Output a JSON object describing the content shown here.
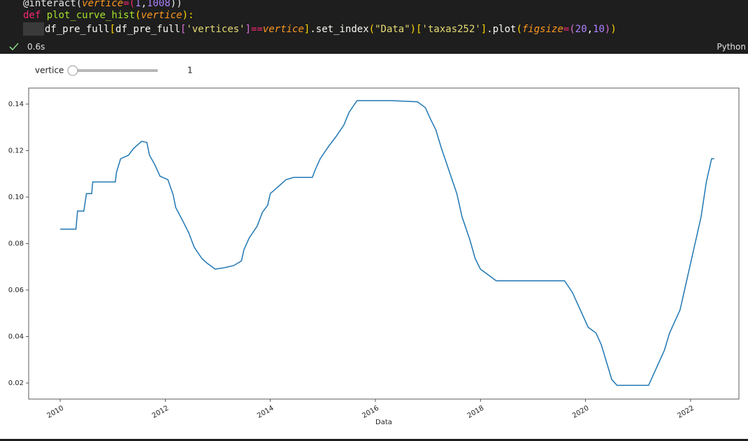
{
  "code": {
    "lines": [
      {
        "tokens": [
          {
            "text": "@interact(",
            "color": "#e8e8e8"
          },
          {
            "text": "vertice",
            "color": "#fd971f",
            "italic": true
          },
          {
            "text": "=(",
            "color": "#f92672"
          },
          {
            "text": "1",
            "color": "#ae81ff"
          },
          {
            "text": ",",
            "color": "#e8e8e8"
          },
          {
            "text": "1008",
            "color": "#ae81ff"
          },
          {
            "text": "))",
            "color": "#e8e8e8"
          }
        ]
      },
      {
        "tokens": [
          {
            "text": "def",
            "color": "#f92672"
          },
          {
            "text": " ",
            "color": "#e8e8e8"
          },
          {
            "text": "plot_curve_hist",
            "color": "#a6e22e"
          },
          {
            "text": "(",
            "color": "#ffd700"
          },
          {
            "text": "vertice",
            "color": "#fd971f",
            "italic": true
          },
          {
            "text": "):",
            "color": "#ffd700"
          }
        ]
      },
      {
        "tokens": [
          {
            "text": "df_pre_full",
            "color": "#f8f8f2"
          },
          {
            "text": "[",
            "color": "#ffd700"
          },
          {
            "text": "df_pre_full",
            "color": "#f8f8f2"
          },
          {
            "text": "[",
            "color": "#da70d6"
          },
          {
            "text": "'vertices'",
            "color": "#e6db74"
          },
          {
            "text": "]",
            "color": "#da70d6"
          },
          {
            "text": "==",
            "color": "#f92672"
          },
          {
            "text": "vertice",
            "color": "#fd971f",
            "italic": true
          },
          {
            "text": "]",
            "color": "#ffd700"
          },
          {
            "text": ".set_index",
            "color": "#f8f8f2"
          },
          {
            "text": "(",
            "color": "#ffd700"
          },
          {
            "text": "\"Data\"",
            "color": "#e6db74"
          },
          {
            "text": ")",
            "color": "#ffd700"
          },
          {
            "text": "[",
            "color": "#ffd700"
          },
          {
            "text": "'taxas252'",
            "color": "#e6db74"
          },
          {
            "text": "]",
            "color": "#ffd700"
          },
          {
            "text": ".plot",
            "color": "#f8f8f2"
          },
          {
            "text": "(",
            "color": "#ffd700"
          },
          {
            "text": "figsize",
            "color": "#fd971f",
            "italic": true
          },
          {
            "text": "=",
            "color": "#f92672"
          },
          {
            "text": "(",
            "color": "#da70d6"
          },
          {
            "text": "20",
            "color": "#ae81ff"
          },
          {
            "text": ",",
            "color": "#f8f8f2"
          },
          {
            "text": "10",
            "color": "#ae81ff"
          },
          {
            "text": ")",
            "color": "#da70d6"
          },
          {
            "text": ")",
            "color": "#ffd700"
          }
        ]
      }
    ]
  },
  "status": {
    "time": "0.6s",
    "language": "Python"
  },
  "widget": {
    "label": "vertice",
    "value": 1
  },
  "chart_data": {
    "type": "line",
    "xlabel": "Data",
    "x": [
      2010.0,
      2010.3,
      2010.33,
      2010.45,
      2010.5,
      2010.6,
      2010.62,
      2011.05,
      2011.07,
      2011.15,
      2011.3,
      2011.4,
      2011.55,
      2011.65,
      2011.7,
      2011.8,
      2011.9,
      2012.05,
      2012.15,
      2012.2,
      2012.35,
      2012.45,
      2012.55,
      2012.7,
      2012.8,
      2012.95,
      2013.1,
      2013.3,
      2013.45,
      2013.5,
      2013.6,
      2013.75,
      2013.85,
      2013.95,
      2014.0,
      2014.15,
      2014.3,
      2014.45,
      2014.8,
      2014.85,
      2014.95,
      2015.1,
      2015.25,
      2015.4,
      2015.5,
      2015.65,
      2016.3,
      2016.8,
      2016.95,
      2017.05,
      2017.15,
      2017.25,
      2017.4,
      2017.55,
      2017.65,
      2017.8,
      2017.9,
      2018.0,
      2018.15,
      2018.3,
      2019.6,
      2019.75,
      2019.85,
      2019.95,
      2020.05,
      2020.2,
      2020.3,
      2020.4,
      2020.5,
      2020.6,
      2021.2,
      2021.35,
      2021.5,
      2021.6,
      2021.8,
      2021.9,
      2022.05,
      2022.2,
      2022.3,
      2022.4,
      2022.45
    ],
    "series": [
      {
        "name": "taxas252",
        "color": "#1f77b4",
        "values": [
          0.0862,
          0.0862,
          0.094,
          0.094,
          0.1015,
          0.1015,
          0.1065,
          0.1065,
          0.1105,
          0.1165,
          0.118,
          0.121,
          0.124,
          0.1235,
          0.118,
          0.114,
          0.109,
          0.1075,
          0.101,
          0.0955,
          0.089,
          0.0845,
          0.0785,
          0.0735,
          0.0715,
          0.069,
          0.0695,
          0.0705,
          0.0725,
          0.0775,
          0.0825,
          0.0875,
          0.0935,
          0.0965,
          0.1015,
          0.1045,
          0.1075,
          0.1085,
          0.1085,
          0.1115,
          0.1165,
          0.1215,
          0.126,
          0.131,
          0.1365,
          0.1415,
          0.1415,
          0.141,
          0.1385,
          0.1335,
          0.129,
          0.1215,
          0.1115,
          0.1015,
          0.0915,
          0.0815,
          0.0735,
          0.069,
          0.0665,
          0.064,
          0.064,
          0.059,
          0.054,
          0.049,
          0.044,
          0.0415,
          0.0365,
          0.029,
          0.0215,
          0.019,
          0.019,
          0.0265,
          0.034,
          0.0415,
          0.0515,
          0.0615,
          0.0765,
          0.0915,
          0.1065,
          0.1165,
          0.1165
        ]
      }
    ],
    "xlim": [
      2009.4,
      2022.92
    ],
    "ylim": [
      0.0131,
      0.1469
    ],
    "xticks": [
      2010,
      2012,
      2014,
      2016,
      2018,
      2020,
      2022
    ],
    "yticks": [
      0.02,
      0.04,
      0.06,
      0.08,
      {
        "value": 0.1,
        "label": "0.10"
      },
      0.12,
      0.14
    ],
    "legend": false,
    "grid": false
  }
}
